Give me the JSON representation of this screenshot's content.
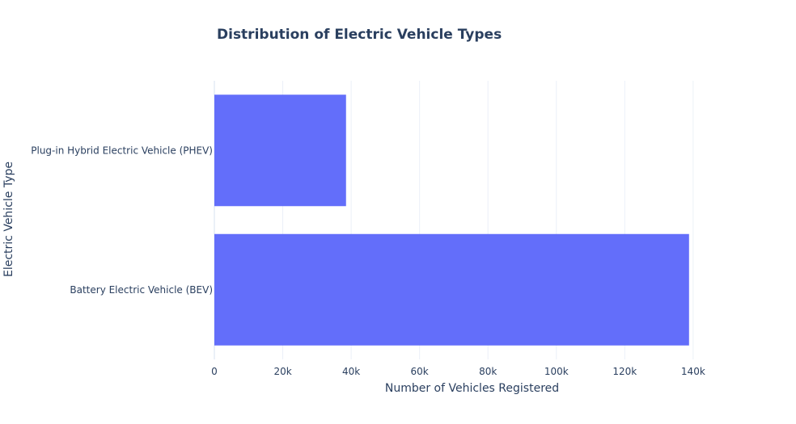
{
  "chart_data": {
    "type": "bar",
    "orientation": "horizontal",
    "title": "Distribution of Electric Vehicle Types",
    "xlabel": "Number of Vehicles Registered",
    "ylabel": "Electric Vehicle Type",
    "categories": [
      "Battery Electric Vehicle (BEV)",
      "Plug-in Hybrid Electric Vehicle (PHEV)"
    ],
    "values": [
      138800,
      38500
    ],
    "xlim": [
      0,
      145000
    ],
    "xticks": [
      0,
      20000,
      40000,
      60000,
      80000,
      100000,
      120000,
      140000
    ],
    "xtick_labels": [
      "0",
      "20k",
      "40k",
      "60k",
      "80k",
      "100k",
      "120k",
      "140k"
    ],
    "grid": true,
    "bar_color": "#636efa",
    "grid_color": "#ebf0f8",
    "text_color": "#2a3f5f"
  }
}
